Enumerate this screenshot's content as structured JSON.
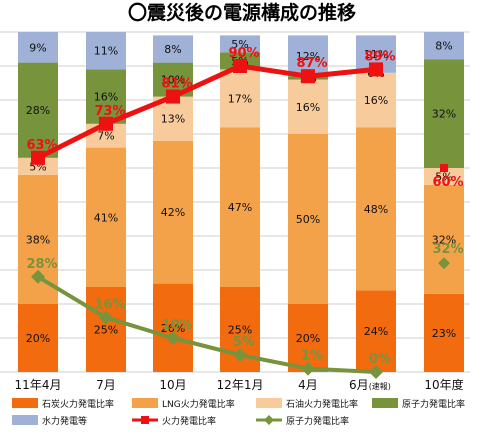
{
  "chart_data": {
    "type": "bar",
    "stacked": true,
    "title": "〇震災後の電源構成の推移",
    "categories": [
      "11年4月",
      "7月",
      "10月",
      "12年1月",
      "4月",
      "6月",
      "10年度"
    ],
    "category_notes": [
      "",
      "",
      "",
      "",
      "",
      "(速報)",
      ""
    ],
    "ylim": [
      0,
      100
    ],
    "grid": true,
    "series": [
      {
        "name": "石炭火力発電比率",
        "values": [
          20,
          25,
          26,
          25,
          20,
          24,
          23
        ],
        "color": "#f26b0f"
      },
      {
        "name": "LNG火力発電比率",
        "values": [
          38,
          41,
          42,
          47,
          50,
          48,
          32
        ],
        "color": "#f4a24a"
      },
      {
        "name": "石油火力発電比率",
        "values": [
          5,
          7,
          13,
          17,
          16,
          16,
          5
        ],
        "color": "#f8cb9c"
      },
      {
        "name": "原子力発電比率",
        "values": [
          28,
          16,
          10,
          5,
          1,
          0,
          32
        ],
        "color": "#77933c"
      },
      {
        "name": "水力発電等",
        "values": [
          9,
          11,
          8,
          5,
          12,
          11,
          8
        ],
        "color": "#9fb1d6"
      }
    ],
    "lines": [
      {
        "name": "火力発電比率",
        "values": [
          63,
          73,
          81,
          90,
          87,
          89
        ],
        "color": "#ee1111",
        "marker": "square"
      },
      {
        "name": "原子力発電比率",
        "values": [
          28,
          16,
          10,
          5,
          1,
          0
        ],
        "color": "#77933c",
        "marker": "diamond"
      }
    ],
    "standalone_markers": [
      {
        "series": "火力発電比率",
        "category": "10年度",
        "value": 60,
        "color": "#ee1111",
        "marker": "square"
      },
      {
        "series": "原子力発電比率",
        "category": "10年度",
        "value": 32,
        "color": "#77933c",
        "marker": "diamond"
      }
    ],
    "legend": [
      {
        "label": "石炭火力発電比率",
        "kind": "box",
        "color": "#f26b0f"
      },
      {
        "label": "LNG火力発電比率",
        "kind": "box",
        "color": "#f4a24a"
      },
      {
        "label": "石油火力発電比率",
        "kind": "box",
        "color": "#f8cb9c"
      },
      {
        "label": "原子力発電比率",
        "kind": "box",
        "color": "#77933c"
      },
      {
        "label": "水力発電等",
        "kind": "box",
        "color": "#9fb1d6"
      },
      {
        "label": "火力発電比率",
        "kind": "line-square",
        "color": "#ee1111"
      },
      {
        "label": "原子力発電比率",
        "kind": "line-diamond",
        "color": "#77933c"
      }
    ],
    "legend_position": "bottom"
  }
}
